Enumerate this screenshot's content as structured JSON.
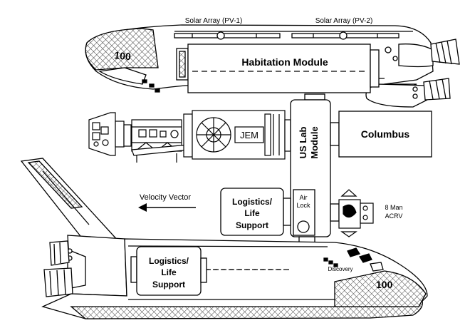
{
  "labels": {
    "solar_array_1": "Solar Array (PV-1)",
    "solar_array_2": "Solar Array (PV-2)",
    "habitation_module": "Habitation Module",
    "jem": "JEM",
    "columbus": "Columbus",
    "us_lab_line1": "US Lab",
    "us_lab_line2": "Module",
    "air_lock_line1": "Air",
    "air_lock_line2": "Lock",
    "velocity_vector": "Velocity Vector",
    "logistics_upper_line1": "Logistics/",
    "logistics_upper_line2": "Life",
    "logistics_upper_line3": "Support",
    "logistics_lower_line1": "Logistics/",
    "logistics_lower_line2": "Life",
    "logistics_lower_line3": "Support",
    "acrv_line1": "8 Man",
    "acrv_line2": "ACRV",
    "discovery": "Discovery",
    "shuttle_top_number": "100",
    "shuttle_bottom_number": "100"
  },
  "colors": {
    "line": "#000000",
    "fill": "#ffffff",
    "hatch": "#555555"
  }
}
